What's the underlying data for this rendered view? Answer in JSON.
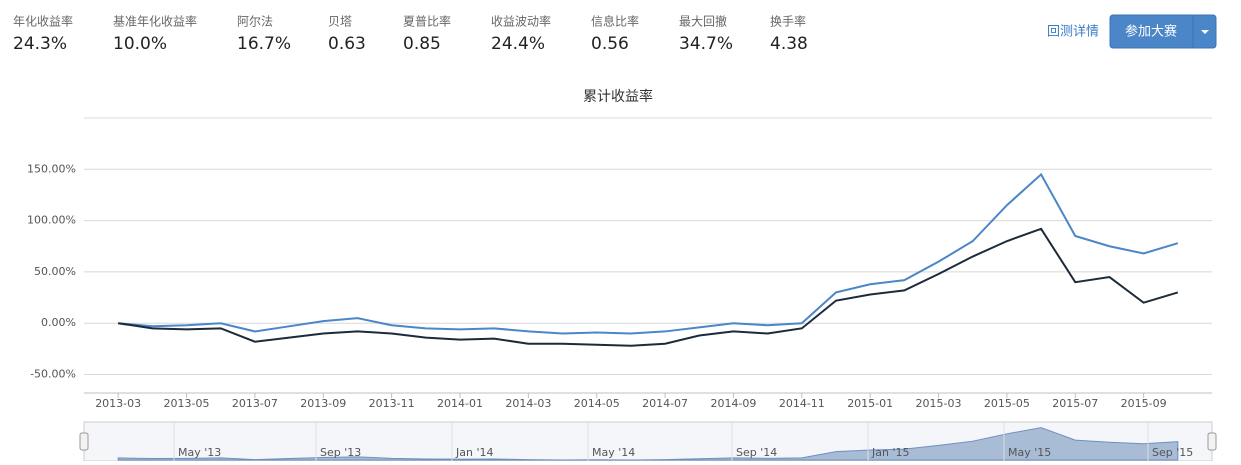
{
  "header": {
    "stats": [
      {
        "label": "年化收益率",
        "value": "24.3%"
      },
      {
        "label": "基准年化收益率",
        "value": "10.0%"
      },
      {
        "label": "阿尔法",
        "value": "16.7%"
      },
      {
        "label": "贝塔",
        "value": "0.63"
      },
      {
        "label": "夏普比率",
        "value": "0.85"
      },
      {
        "label": "收益波动率",
        "value": "24.4%"
      },
      {
        "label": "信息比率",
        "value": "0.56"
      },
      {
        "label": "最大回撤",
        "value": "34.7%"
      },
      {
        "label": "换手率",
        "value": "4.38"
      }
    ],
    "link": "回测详情",
    "button": "参加大赛"
  },
  "chart_data": {
    "type": "line",
    "title": "累计收益率",
    "x": [
      "2013-03",
      "2013-04",
      "2013-05",
      "2013-06",
      "2013-07",
      "2013-08",
      "2013-09",
      "2013-10",
      "2013-11",
      "2013-12",
      "2014-01",
      "2014-02",
      "2014-03",
      "2014-04",
      "2014-05",
      "2014-06",
      "2014-07",
      "2014-08",
      "2014-09",
      "2014-10",
      "2014-11",
      "2014-12",
      "2015-01",
      "2015-02",
      "2015-03",
      "2015-04",
      "2015-05",
      "2015-06",
      "2015-07",
      "2015-08",
      "2015-09",
      "2015-10"
    ],
    "series": [
      {
        "color": "#4a86c8",
        "values": [
          0,
          -3,
          -2,
          0,
          -8,
          -3,
          2,
          5,
          -2,
          -5,
          -6,
          -5,
          -8,
          -10,
          -9,
          -10,
          -8,
          -4,
          0,
          -2,
          0,
          30,
          38,
          42,
          60,
          80,
          115,
          145,
          85,
          75,
          68,
          78
        ]
      },
      {
        "color": "#1c2a3a",
        "values": [
          0,
          -5,
          -6,
          -5,
          -18,
          -14,
          -10,
          -8,
          -10,
          -14,
          -16,
          -15,
          -20,
          -20,
          -21,
          -22,
          -20,
          -12,
          -8,
          -10,
          -5,
          22,
          28,
          32,
          48,
          65,
          80,
          92,
          40,
          45,
          20,
          30
        ]
      }
    ],
    "xlim": [
      "2013-02",
      "2015-11"
    ],
    "xticks": [
      "2013-03",
      "2013-05",
      "2013-07",
      "2013-09",
      "2013-11",
      "2014-01",
      "2014-03",
      "2014-05",
      "2014-07",
      "2014-09",
      "2014-11",
      "2015-01",
      "2015-03",
      "2015-05",
      "2015-07",
      "2015-09"
    ],
    "ylim": [
      -68,
      200
    ],
    "yticks": [
      {
        "value": -50,
        "label": "-50.00%"
      },
      {
        "value": 0,
        "label": "0.00%"
      },
      {
        "value": 50,
        "label": "50.00%"
      },
      {
        "value": 100,
        "label": "100.00%"
      },
      {
        "value": 150,
        "label": "150.00%"
      }
    ],
    "grid": true,
    "navigator": {
      "ticks": [
        "May '13",
        "Sep '13",
        "Jan '14",
        "May '14",
        "Sep '14",
        "Jan '15",
        "May '15",
        "Sep '15"
      ]
    }
  }
}
